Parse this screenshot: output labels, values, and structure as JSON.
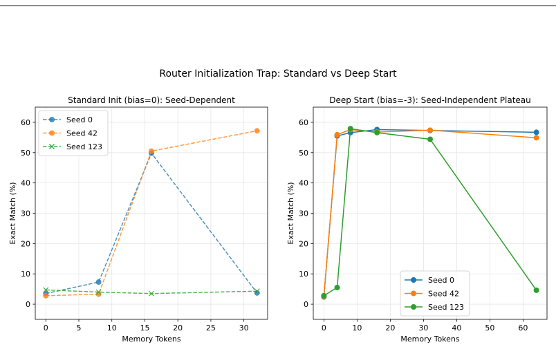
{
  "suptitle": "Router Initialization Trap: Standard vs Deep Start",
  "chart_data": [
    {
      "type": "line",
      "title": "Standard Init (bias=0): Seed-Dependent",
      "xlabel": "Memory Tokens",
      "ylabel": "Exact Match (%)",
      "xlim": [
        -1.6,
        33.6
      ],
      "ylim": [
        -5,
        65
      ],
      "xticks": [
        0,
        5,
        10,
        15,
        20,
        25,
        30
      ],
      "yticks": [
        0,
        10,
        20,
        30,
        40,
        50,
        60
      ],
      "grid": true,
      "line_style": "dashed",
      "legend_position": "upper left",
      "series": [
        {
          "name": "Seed 0",
          "color": "#1f77b4",
          "marker": "circle",
          "x": [
            0,
            8,
            16,
            32
          ],
          "y": [
            3.5,
            7.3,
            49.8,
            3.7
          ]
        },
        {
          "name": "Seed 42",
          "color": "#ff7f0e",
          "marker": "circle",
          "x": [
            0,
            8,
            16,
            32
          ],
          "y": [
            2.8,
            3.3,
            50.5,
            57.2
          ]
        },
        {
          "name": "Seed 123",
          "color": "#2ca02c",
          "marker": "x",
          "x": [
            0,
            8,
            16,
            32
          ],
          "y": [
            4.7,
            4.0,
            3.5,
            4.3
          ]
        }
      ]
    },
    {
      "type": "line",
      "title": "Deep Start (bias=-3): Seed-Independent Plateau",
      "xlabel": "Memory Tokens",
      "ylabel": "Exact Match (%)",
      "xlim": [
        -3.2,
        67.2
      ],
      "ylim": [
        -5,
        65
      ],
      "xticks": [
        0,
        10,
        20,
        30,
        40,
        50,
        60
      ],
      "yticks": [
        0,
        10,
        20,
        30,
        40,
        50,
        60
      ],
      "grid": true,
      "line_style": "solid",
      "legend_position": "lower center",
      "series": [
        {
          "name": "Seed 0",
          "color": "#1f77b4",
          "marker": "circle",
          "x": [
            0,
            4,
            8,
            16,
            32,
            64
          ],
          "y": [
            2.4,
            55.5,
            56.6,
            57.6,
            57.3,
            56.7
          ]
        },
        {
          "name": "Seed 42",
          "color": "#ff7f0e",
          "marker": "circle",
          "x": [
            0,
            4,
            8,
            16,
            32,
            64
          ],
          "y": [
            2.6,
            55.9,
            57.6,
            56.8,
            57.4,
            54.9
          ]
        },
        {
          "name": "Seed 123",
          "color": "#2ca02c",
          "marker": "circle",
          "x": [
            0,
            4,
            8,
            16,
            32,
            64
          ],
          "y": [
            2.8,
            5.5,
            57.9,
            56.6,
            54.4,
            4.6
          ]
        }
      ]
    }
  ]
}
